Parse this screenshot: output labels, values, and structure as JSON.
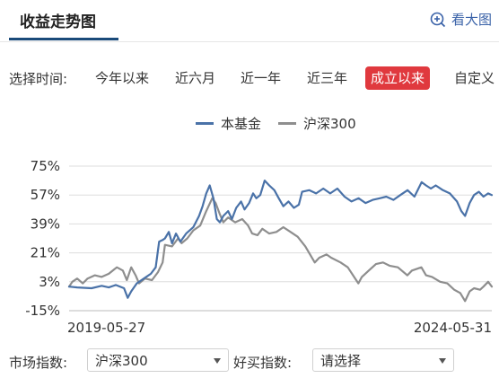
{
  "header": {
    "title": "收益走势图",
    "big_view_label": "看大图"
  },
  "time_filter": {
    "label": "选择时间:",
    "tabs": [
      {
        "label": "今年以来",
        "active": false
      },
      {
        "label": "近六月",
        "active": false
      },
      {
        "label": "近一年",
        "active": false
      },
      {
        "label": "近三年",
        "active": false
      },
      {
        "label": "成立以来",
        "active": true
      },
      {
        "label": "自定义",
        "active": false
      }
    ]
  },
  "colors": {
    "fund": "#4a72a8",
    "index": "#8e8e8e",
    "active_tab": "#e0393e",
    "grid": "#dddddd",
    "link": "#3a62a8"
  },
  "chart_data": {
    "type": "line",
    "y_ticks": [
      "75%",
      "57%",
      "39%",
      "21%",
      "3%",
      "-15%"
    ],
    "y_range": [
      -15,
      75
    ],
    "x_range": [
      "2019-05-27",
      "2024-05-31"
    ],
    "x_tick_labels": [
      "2019-05-27",
      "2024-05-31"
    ],
    "series": [
      {
        "name": "本基金",
        "color": "#4a72a8",
        "points": [
          [
            "2019-05-27",
            0.0
          ],
          [
            "2019-07-01",
            -0.5
          ],
          [
            "2019-09-01",
            -1.0
          ],
          [
            "2019-10-15",
            0.5
          ],
          [
            "2019-11-15",
            -0.5
          ],
          [
            "2019-12-15",
            1.0
          ],
          [
            "2020-01-20",
            -1.0
          ],
          [
            "2020-02-05",
            -7.0
          ],
          [
            "2020-02-20",
            -3.0
          ],
          [
            "2020-03-15",
            2.0
          ],
          [
            "2020-04-15",
            5.0
          ],
          [
            "2020-05-15",
            8.0
          ],
          [
            "2020-06-05",
            12.0
          ],
          [
            "2020-06-20",
            28.0
          ],
          [
            "2020-07-05",
            29.0
          ],
          [
            "2020-07-15",
            30.0
          ],
          [
            "2020-08-01",
            34.0
          ],
          [
            "2020-08-15",
            27.0
          ],
          [
            "2020-09-01",
            33.0
          ],
          [
            "2020-09-20",
            28.0
          ],
          [
            "2020-10-15",
            33.0
          ],
          [
            "2020-11-15",
            37.0
          ],
          [
            "2020-12-10",
            44.0
          ],
          [
            "2020-12-25",
            50.0
          ],
          [
            "2021-01-10",
            58.0
          ],
          [
            "2021-01-25",
            63.0
          ],
          [
            "2021-02-10",
            55.0
          ],
          [
            "2021-02-25",
            42.0
          ],
          [
            "2021-03-10",
            40.0
          ],
          [
            "2021-03-25",
            44.0
          ],
          [
            "2021-04-15",
            47.0
          ],
          [
            "2021-05-01",
            42.0
          ],
          [
            "2021-05-20",
            49.0
          ],
          [
            "2021-06-10",
            53.0
          ],
          [
            "2021-06-25",
            48.0
          ],
          [
            "2021-07-15",
            52.0
          ],
          [
            "2021-08-01",
            58.0
          ],
          [
            "2021-08-15",
            55.0
          ],
          [
            "2021-09-01",
            57.0
          ],
          [
            "2021-09-20",
            66.0
          ],
          [
            "2021-10-10",
            63.0
          ],
          [
            "2021-11-01",
            60.0
          ],
          [
            "2021-11-20",
            55.0
          ],
          [
            "2021-12-10",
            50.0
          ],
          [
            "2022-01-01",
            53.0
          ],
          [
            "2022-01-25",
            49.0
          ],
          [
            "2022-02-15",
            51.0
          ],
          [
            "2022-03-01",
            59.0
          ],
          [
            "2022-04-01",
            60.0
          ],
          [
            "2022-05-01",
            58.0
          ],
          [
            "2022-06-01",
            61.0
          ],
          [
            "2022-07-01",
            58.0
          ],
          [
            "2022-08-01",
            61.0
          ],
          [
            "2022-09-01",
            56.0
          ],
          [
            "2022-10-01",
            53.0
          ],
          [
            "2022-11-01",
            55.0
          ],
          [
            "2022-12-01",
            52.0
          ],
          [
            "2023-01-01",
            54.0
          ],
          [
            "2023-02-01",
            55.0
          ],
          [
            "2023-03-01",
            56.0
          ],
          [
            "2023-04-01",
            54.0
          ],
          [
            "2023-05-01",
            57.0
          ],
          [
            "2023-06-01",
            60.0
          ],
          [
            "2023-07-01",
            56.0
          ],
          [
            "2023-08-01",
            65.0
          ],
          [
            "2023-08-20",
            63.0
          ],
          [
            "2023-09-10",
            61.0
          ],
          [
            "2023-10-01",
            63.0
          ],
          [
            "2023-11-01",
            60.0
          ],
          [
            "2023-12-01",
            58.0
          ],
          [
            "2024-01-01",
            53.0
          ],
          [
            "2024-01-20",
            47.0
          ],
          [
            "2024-02-05",
            44.0
          ],
          [
            "2024-02-25",
            52.0
          ],
          [
            "2024-03-15",
            57.0
          ],
          [
            "2024-04-05",
            59.0
          ],
          [
            "2024-04-25",
            56.0
          ],
          [
            "2024-05-15",
            58.0
          ],
          [
            "2024-05-31",
            57.0
          ]
        ]
      },
      {
        "name": "沪深300",
        "color": "#8e8e8e",
        "points": [
          [
            "2019-05-27",
            0.0
          ],
          [
            "2019-06-10",
            3.0
          ],
          [
            "2019-07-01",
            5.0
          ],
          [
            "2019-07-25",
            2.0
          ],
          [
            "2019-08-15",
            5.0
          ],
          [
            "2019-09-15",
            7.0
          ],
          [
            "2019-10-15",
            6.0
          ],
          [
            "2019-11-15",
            8.0
          ],
          [
            "2019-12-20",
            12.0
          ],
          [
            "2020-01-15",
            10.0
          ],
          [
            "2020-02-01",
            4.0
          ],
          [
            "2020-02-20",
            12.0
          ],
          [
            "2020-03-10",
            7.0
          ],
          [
            "2020-03-25",
            2.0
          ],
          [
            "2020-04-20",
            5.0
          ],
          [
            "2020-05-20",
            4.0
          ],
          [
            "2020-06-15",
            9.0
          ],
          [
            "2020-07-05",
            15.0
          ],
          [
            "2020-07-15",
            26.0
          ],
          [
            "2020-08-15",
            25.0
          ],
          [
            "2020-09-10",
            30.0
          ],
          [
            "2020-09-25",
            27.0
          ],
          [
            "2020-10-20",
            30.0
          ],
          [
            "2020-11-15",
            35.0
          ],
          [
            "2020-12-15",
            38.0
          ],
          [
            "2021-01-10",
            47.0
          ],
          [
            "2021-02-05",
            55.0
          ],
          [
            "2021-02-20",
            52.0
          ],
          [
            "2021-03-10",
            45.0
          ],
          [
            "2021-03-25",
            40.0
          ],
          [
            "2021-04-15",
            43.0
          ],
          [
            "2021-05-15",
            40.0
          ],
          [
            "2021-06-15",
            42.0
          ],
          [
            "2021-07-10",
            38.0
          ],
          [
            "2021-07-28",
            33.0
          ],
          [
            "2021-08-20",
            32.0
          ],
          [
            "2021-09-10",
            36.0
          ],
          [
            "2021-10-10",
            33.0
          ],
          [
            "2021-11-10",
            34.0
          ],
          [
            "2021-12-10",
            37.0
          ],
          [
            "2022-01-10",
            34.0
          ],
          [
            "2022-02-10",
            31.0
          ],
          [
            "2022-03-15",
            25.0
          ],
          [
            "2022-04-25",
            15.0
          ],
          [
            "2022-05-15",
            18.0
          ],
          [
            "2022-06-15",
            20.0
          ],
          [
            "2022-07-05",
            18.0
          ],
          [
            "2022-08-15",
            15.0
          ],
          [
            "2022-09-15",
            12.0
          ],
          [
            "2022-10-31",
            2.0
          ],
          [
            "2022-11-15",
            6.0
          ],
          [
            "2022-12-15",
            10.0
          ],
          [
            "2023-01-15",
            14.0
          ],
          [
            "2023-02-15",
            15.0
          ],
          [
            "2023-03-15",
            13.0
          ],
          [
            "2023-04-20",
            12.0
          ],
          [
            "2023-05-31",
            7.0
          ],
          [
            "2023-06-20",
            10.0
          ],
          [
            "2023-07-31",
            12.0
          ],
          [
            "2023-08-20",
            7.0
          ],
          [
            "2023-09-15",
            6.0
          ],
          [
            "2023-10-20",
            3.0
          ],
          [
            "2023-11-20",
            2.0
          ],
          [
            "2023-12-20",
            -2.0
          ],
          [
            "2024-01-15",
            -4.0
          ],
          [
            "2024-02-05",
            -9.0
          ],
          [
            "2024-02-25",
            -3.0
          ],
          [
            "2024-03-15",
            -1.0
          ],
          [
            "2024-04-10",
            -2.0
          ],
          [
            "2024-04-25",
            0.0
          ],
          [
            "2024-05-15",
            3.0
          ],
          [
            "2024-05-31",
            0.0
          ]
        ]
      }
    ]
  },
  "market_index": {
    "label": "市场指数:",
    "selected": "沪深300"
  },
  "good_buy_index": {
    "label": "好买指数:",
    "selected": "请选择"
  }
}
